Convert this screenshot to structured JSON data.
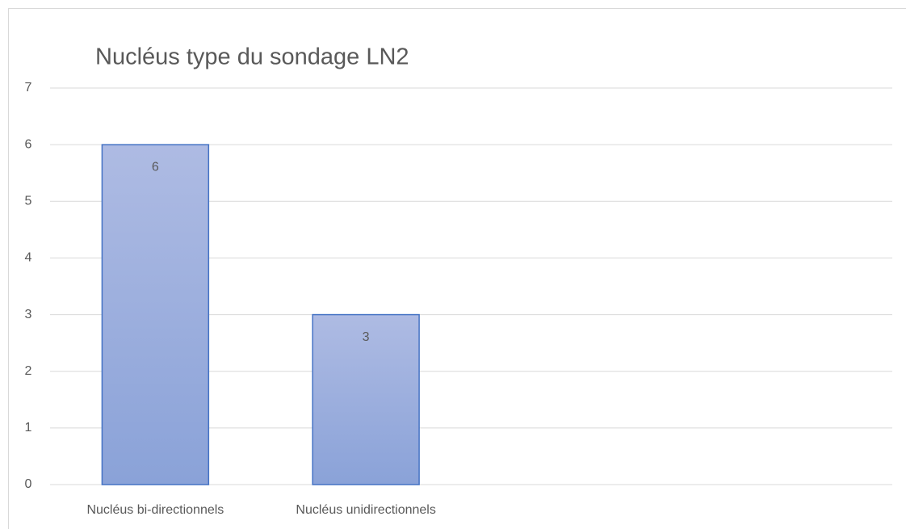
{
  "chart_data": {
    "type": "bar",
    "title": "Nucléus type du sondage LN2",
    "categories": [
      "Nucléus bi-directionnels",
      "Nucléus unidirectionnels",
      null,
      null
    ],
    "values": [
      6,
      3,
      null,
      null
    ],
    "color": "#4472c4",
    "ylim": [
      0,
      7
    ],
    "yticks": [
      0,
      1,
      2,
      3,
      4,
      5,
      6,
      7
    ],
    "grid": true
  }
}
